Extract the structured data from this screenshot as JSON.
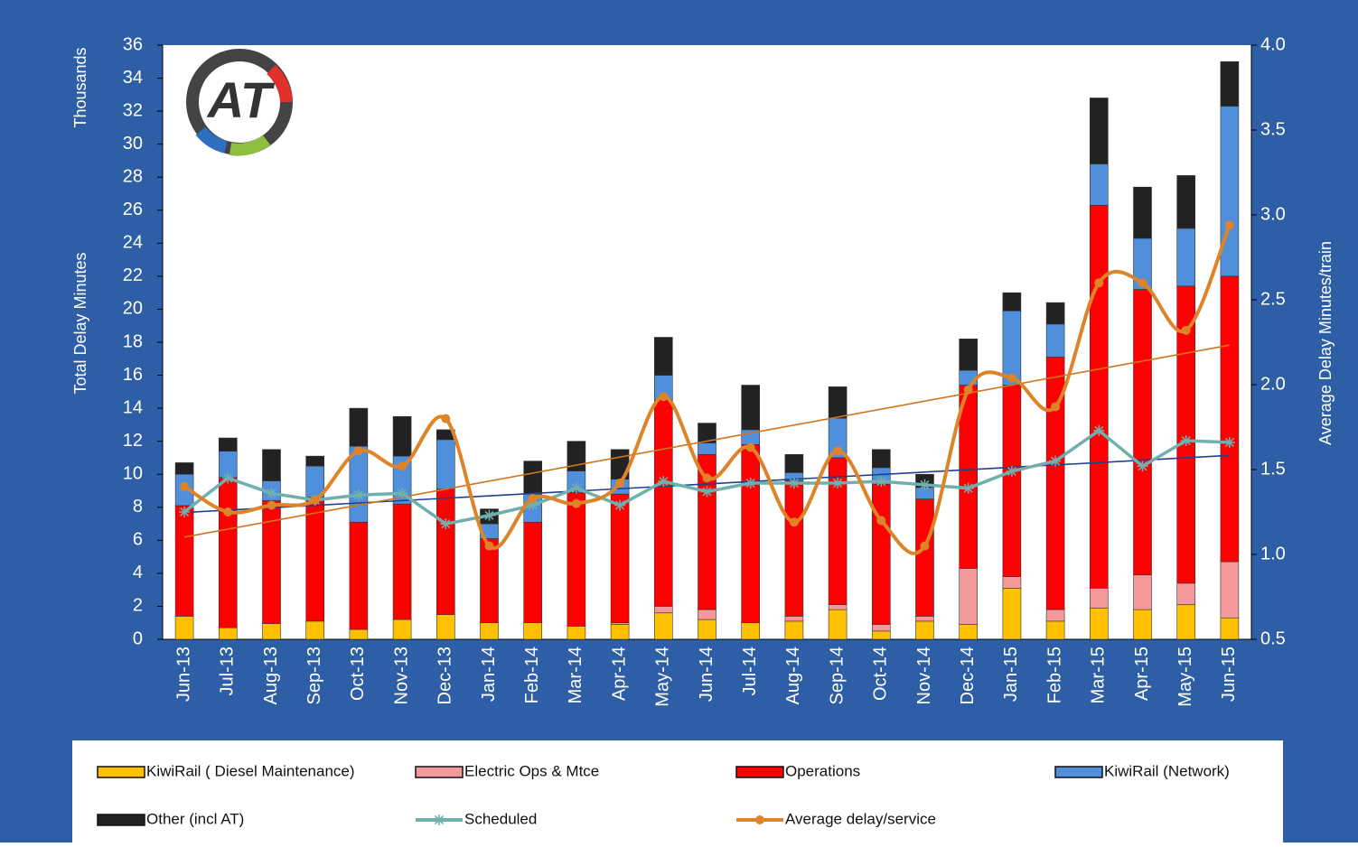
{
  "chart_data": {
    "type": "bar",
    "stacked": true,
    "logo": "AT",
    "y_unit_label": "Thousands",
    "ylabel": "Total Delay Minutes",
    "y2label": "Average  Delay Minutes/train",
    "categories": [
      "Jun-13",
      "Jul-13",
      "Aug-13",
      "Sep-13",
      "Oct-13",
      "Nov-13",
      "Dec-13",
      "Jan-14",
      "Feb-14",
      "Mar-14",
      "Apr-14",
      "May-14",
      "Jun-14",
      "Jul-14",
      "Aug-14",
      "Sep-14",
      "Oct-14",
      "Nov-14",
      "Dec-14",
      "Jan-15",
      "Feb-15",
      "Mar-15",
      "Apr-15",
      "May-15",
      "Jun-15"
    ],
    "ylim": [
      0,
      36
    ],
    "yticks": [
      0,
      2,
      4,
      6,
      8,
      10,
      12,
      14,
      16,
      18,
      20,
      22,
      24,
      26,
      28,
      30,
      32,
      34,
      36
    ],
    "y2lim": [
      0.5,
      4.0
    ],
    "y2ticks": [
      {
        "value": 0.5,
        "label": "0.5"
      },
      {
        "value": 1,
        "label": "1.0"
      },
      {
        "value": 1.5,
        "label": "1.5"
      },
      {
        "value": 2,
        "label": "2.0"
      },
      {
        "value": 2.5,
        "label": "2.5"
      },
      {
        "value": 3,
        "label": "3.0"
      },
      {
        "value": 3.5,
        "label": "3.5"
      },
      {
        "value": 4,
        "label": "4.0"
      }
    ],
    "trendlines": true,
    "series": [
      {
        "name": "KiwiRail ( Diesel Maintenance)",
        "color": "#ffc000",
        "values": [
          1.4,
          0.7,
          0.95,
          1.1,
          0.6,
          1.2,
          1.5,
          1.0,
          1.0,
          0.8,
          0.9,
          1.6,
          1.2,
          1.0,
          1.1,
          1.8,
          0.5,
          1.1,
          0.9,
          3.1,
          1.1,
          1.9,
          1.8,
          2.1,
          1.3
        ]
      },
      {
        "name": "Electric Ops & Mtce",
        "color": "#f4999b",
        "values": [
          0,
          0,
          0,
          0,
          0,
          0,
          0,
          0,
          0,
          0,
          0.1,
          0.4,
          0.6,
          0,
          0.3,
          0.3,
          0.4,
          0.3,
          3.4,
          0.7,
          0.7,
          1.2,
          2.1,
          1.3,
          3.4
        ]
      },
      {
        "name": "Operations",
        "color": "#ff0000",
        "values": [
          6.7,
          9.1,
          7.45,
          7.5,
          6.5,
          7.0,
          7.6,
          5.1,
          6.1,
          8.1,
          7.8,
          12.5,
          9.4,
          10.8,
          8.2,
          8.9,
          8.5,
          7.1,
          11.1,
          11.6,
          15.3,
          23.2,
          17.3,
          18.0,
          17.3
        ]
      },
      {
        "name": "KiwiRail (Network)",
        "color": "#4f8fdc",
        "values": [
          1.9,
          1.6,
          1.2,
          1.9,
          4.6,
          2.9,
          3.0,
          0.9,
          1.7,
          1.3,
          0.9,
          1.5,
          0.7,
          0.9,
          0.5,
          2.4,
          1.0,
          0.7,
          0.9,
          4.5,
          2.0,
          2.5,
          3.1,
          3.5,
          10.3
        ]
      },
      {
        "name": "Other (incl AT)",
        "color": "#222222",
        "values": [
          0.7,
          0.8,
          1.9,
          0.6,
          2.3,
          2.4,
          0.6,
          0.9,
          2.0,
          1.8,
          1.8,
          2.3,
          1.2,
          2.7,
          1.1,
          1.9,
          1.1,
          0.8,
          1.9,
          1.1,
          1.3,
          4.0,
          3.1,
          3.2,
          2.7
        ]
      },
      {
        "name": "Scheduled",
        "type": "line",
        "axis": "y2",
        "color": "#6fb0ae",
        "trend_color": "#1f3f8f",
        "marker": "star",
        "values": [
          1.25,
          1.45,
          1.36,
          1.32,
          1.35,
          1.36,
          1.18,
          1.23,
          1.29,
          1.39,
          1.29,
          1.43,
          1.37,
          1.42,
          1.42,
          1.42,
          1.43,
          1.41,
          1.39,
          1.49,
          1.55,
          1.73,
          1.52,
          1.67,
          1.66
        ]
      },
      {
        "name": "Average delay/service",
        "type": "line",
        "axis": "y2",
        "color": "#dd8428",
        "trend_color": "#d2741a",
        "marker": "circle",
        "values": [
          1.4,
          1.25,
          1.29,
          1.32,
          1.61,
          1.52,
          1.8,
          1.05,
          1.33,
          1.3,
          1.42,
          1.93,
          1.45,
          1.63,
          1.19,
          1.61,
          1.2,
          1.05,
          1.97,
          2.04,
          1.87,
          2.6,
          2.6,
          2.32,
          2.94
        ]
      }
    ]
  }
}
